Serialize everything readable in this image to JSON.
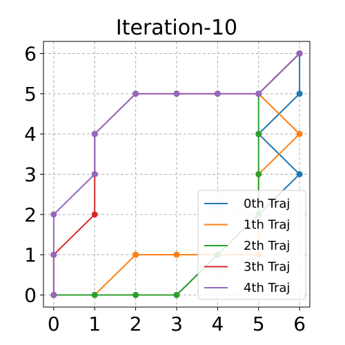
{
  "chart_data": {
    "type": "line",
    "title": "Iteration-10",
    "xlabel": "",
    "ylabel": "",
    "xlim": [
      -0.25,
      6.25
    ],
    "ylim": [
      -0.3,
      6.3
    ],
    "xticks": [
      "0",
      "1",
      "2",
      "3",
      "4",
      "5",
      "6"
    ],
    "yticks": [
      "0",
      "1",
      "2",
      "3",
      "4",
      "5",
      "6"
    ],
    "grid": true,
    "legend_position": "bottom-right",
    "series": [
      {
        "name": "0th Traj",
        "color": "#1f77b4",
        "points": [
          [
            0,
            0
          ],
          [
            1,
            0
          ],
          [
            2,
            0
          ],
          [
            3,
            0
          ],
          [
            4,
            1
          ],
          [
            5,
            2
          ],
          [
            6,
            3
          ],
          [
            5,
            4
          ],
          [
            6,
            5
          ],
          [
            6,
            6
          ]
        ]
      },
      {
        "name": "1th Traj",
        "color": "#ff7f0e",
        "points": [
          [
            0,
            0
          ],
          [
            1,
            0
          ],
          [
            2,
            1
          ],
          [
            3,
            1
          ],
          [
            4,
            1
          ],
          [
            5,
            1
          ],
          [
            5,
            2
          ],
          [
            5,
            3
          ],
          [
            6,
            4
          ],
          [
            5,
            5
          ],
          [
            6,
            6
          ]
        ]
      },
      {
        "name": "2th Traj",
        "color": "#2ca02c",
        "points": [
          [
            0,
            0
          ],
          [
            1,
            0
          ],
          [
            2,
            0
          ],
          [
            3,
            0
          ],
          [
            4,
            1
          ],
          [
            5,
            2
          ],
          [
            5,
            3
          ],
          [
            5,
            4
          ],
          [
            5,
            5
          ],
          [
            6,
            6
          ]
        ]
      },
      {
        "name": "3th Traj",
        "color": "#d62728",
        "points": [
          [
            0,
            0
          ],
          [
            0,
            1
          ],
          [
            1,
            2
          ],
          [
            1,
            3
          ],
          [
            1,
            4
          ],
          [
            2,
            5
          ],
          [
            3,
            5
          ],
          [
            4,
            5
          ],
          [
            5,
            5
          ],
          [
            6,
            6
          ]
        ]
      },
      {
        "name": "4th Traj",
        "color": "#9467bd",
        "points": [
          [
            0,
            0
          ],
          [
            0,
            1
          ],
          [
            0,
            2
          ],
          [
            1,
            3
          ],
          [
            1,
            4
          ],
          [
            2,
            5
          ],
          [
            3,
            5
          ],
          [
            4,
            5
          ],
          [
            5,
            5
          ],
          [
            6,
            6
          ]
        ]
      }
    ]
  }
}
